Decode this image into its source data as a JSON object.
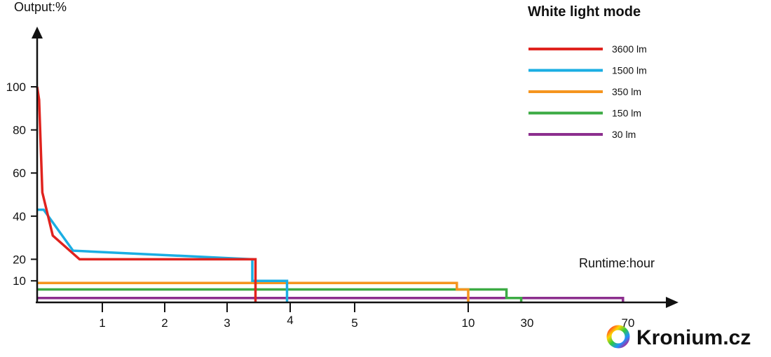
{
  "chart_data": {
    "type": "line",
    "title": "White light mode",
    "ylabel": "Output:%",
    "xlabel": "Runtime:hour",
    "y_ticks": [
      10,
      20,
      40,
      60,
      80,
      100
    ],
    "x_ticks": [
      {
        "label": "1",
        "hours": 1
      },
      {
        "label": "2",
        "hours": 2
      },
      {
        "label": "3",
        "hours": 3
      },
      {
        "label": "4",
        "hours": 4
      },
      {
        "label": "5",
        "hours": 5
      },
      {
        "label": "10",
        "hours": 10
      },
      {
        "label": "30",
        "hours": 30
      },
      {
        "label": "70",
        "hours": 70
      }
    ],
    "ylim": [
      0,
      115
    ],
    "xlim": [
      0,
      80
    ],
    "x_scale": "irregular (non-linear tick spacing)",
    "legend_position": "top-right",
    "grid": false,
    "series": [
      {
        "name": "3600 lm",
        "color": "#e0231e",
        "points": [
          [
            0,
            100
          ],
          [
            0.03,
            94
          ],
          [
            0.08,
            51
          ],
          [
            0.24,
            31
          ],
          [
            0.65,
            20
          ],
          [
            3.45,
            20
          ],
          [
            3.45,
            0
          ]
        ]
      },
      {
        "name": "1500 lm",
        "color": "#1aaee3",
        "points": [
          [
            0,
            43
          ],
          [
            0.1,
            43
          ],
          [
            0.55,
            24
          ],
          [
            3.4,
            20
          ],
          [
            3.4,
            10
          ],
          [
            3.95,
            10
          ],
          [
            3.95,
            0
          ]
        ]
      },
      {
        "name": "350 lm",
        "color": "#f5951f",
        "points": [
          [
            0,
            9
          ],
          [
            9.5,
            9
          ],
          [
            9.5,
            6
          ],
          [
            10,
            6
          ],
          [
            10,
            0
          ]
        ]
      },
      {
        "name": "150 lm",
        "color": "#3cab44",
        "points": [
          [
            0,
            6
          ],
          [
            23,
            6
          ],
          [
            23,
            2
          ],
          [
            28,
            2
          ],
          [
            28,
            0
          ]
        ]
      },
      {
        "name": "30 lm",
        "color": "#8c2e8e",
        "points": [
          [
            0,
            2
          ],
          [
            68,
            2
          ],
          [
            68,
            0
          ]
        ]
      }
    ]
  },
  "brand": {
    "text": "Kronium.cz"
  }
}
